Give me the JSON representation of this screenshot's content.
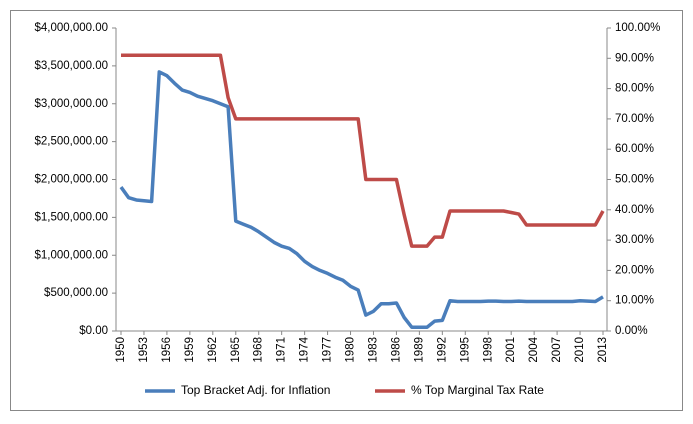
{
  "chart_data": {
    "type": "line",
    "x": [
      1950,
      1951,
      1952,
      1953,
      1954,
      1955,
      1956,
      1957,
      1958,
      1959,
      1960,
      1961,
      1962,
      1963,
      1964,
      1965,
      1966,
      1967,
      1968,
      1969,
      1970,
      1971,
      1972,
      1973,
      1974,
      1975,
      1976,
      1977,
      1978,
      1979,
      1980,
      1981,
      1982,
      1983,
      1984,
      1985,
      1986,
      1987,
      1988,
      1989,
      1990,
      1991,
      1992,
      1993,
      1994,
      1995,
      1996,
      1997,
      1998,
      1999,
      2000,
      2001,
      2002,
      2003,
      2004,
      2005,
      2006,
      2007,
      2008,
      2009,
      2010,
      2011,
      2012,
      2013
    ],
    "xlim": [
      1950,
      2013
    ],
    "xticks": [
      1950,
      1953,
      1956,
      1959,
      1962,
      1965,
      1968,
      1971,
      1974,
      1977,
      1980,
      1983,
      1986,
      1989,
      1992,
      1995,
      1998,
      2001,
      2004,
      2007,
      2010,
      2013
    ],
    "series": [
      {
        "name": "Top Bracket Adj. for Inflation",
        "color": "#4a7ebb",
        "axis": "y",
        "values": [
          1900000,
          1760000,
          1730000,
          1720000,
          1710000,
          3420000,
          3370000,
          3270000,
          3180000,
          3150000,
          3100000,
          3070000,
          3040000,
          3000000,
          2960000,
          1450000,
          1410000,
          1370000,
          1310000,
          1240000,
          1170000,
          1120000,
          1090000,
          1020000,
          920000,
          850000,
          800000,
          760000,
          710000,
          670000,
          590000,
          540000,
          210000,
          260000,
          360000,
          360000,
          370000,
          180000,
          50000,
          50000,
          50000,
          130000,
          140000,
          400000,
          390000,
          390000,
          390000,
          390000,
          395000,
          395000,
          390000,
          390000,
          395000,
          390000,
          390000,
          390000,
          390000,
          390000,
          390000,
          390000,
          400000,
          395000,
          390000,
          450000
        ]
      },
      {
        "name": "% Top Marginal Tax Rate",
        "color": "#be4b48",
        "axis": "y2",
        "values": [
          91,
          91,
          91,
          91,
          91,
          91,
          91,
          91,
          91,
          91,
          91,
          91,
          91,
          91,
          77,
          70,
          70,
          70,
          70,
          70,
          70,
          70,
          70,
          70,
          70,
          70,
          70,
          70,
          70,
          70,
          70,
          70,
          50,
          50,
          50,
          50,
          50,
          38.5,
          28,
          28,
          28,
          31,
          31,
          39.6,
          39.6,
          39.6,
          39.6,
          39.6,
          39.6,
          39.6,
          39.6,
          39.1,
          38.6,
          35,
          35,
          35,
          35,
          35,
          35,
          35,
          35,
          35,
          35,
          39.6
        ]
      }
    ],
    "ylim": [
      0,
      4000000
    ],
    "yticks": [
      {
        "value": 0,
        "label": "$0.00"
      },
      {
        "value": 500000,
        "label": "$500,000.00"
      },
      {
        "value": 1000000,
        "label": "$1,000,000.00"
      },
      {
        "value": 1500000,
        "label": "$1,500,000.00"
      },
      {
        "value": 2000000,
        "label": "$2,000,000.00"
      },
      {
        "value": 2500000,
        "label": "$2,500,000.00"
      },
      {
        "value": 3000000,
        "label": "$3,000,000.00"
      },
      {
        "value": 3500000,
        "label": "$3,500,000.00"
      },
      {
        "value": 4000000,
        "label": "$4,000,000.00"
      }
    ],
    "y2lim": [
      0,
      100
    ],
    "y2ticks": [
      {
        "value": 0,
        "label": "0.00%"
      },
      {
        "value": 10,
        "label": "10.00%"
      },
      {
        "value": 20,
        "label": "20.00%"
      },
      {
        "value": 30,
        "label": "30.00%"
      },
      {
        "value": 40,
        "label": "40.00%"
      },
      {
        "value": 50,
        "label": "50.00%"
      },
      {
        "value": 60,
        "label": "60.00%"
      },
      {
        "value": 70,
        "label": "70.00%"
      },
      {
        "value": 80,
        "label": "80.00%"
      },
      {
        "value": 90,
        "label": "90.00%"
      },
      {
        "value": 100,
        "label": "100.00%"
      }
    ],
    "grid": false,
    "legend": "bottom"
  }
}
